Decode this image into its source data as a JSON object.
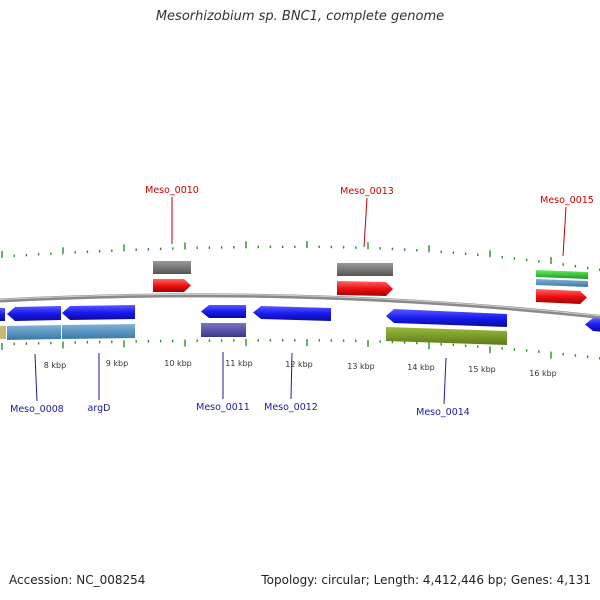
{
  "title": "Mesorhizobium sp. BNC1, complete genome",
  "footer": {
    "accession": "Accession: NC_008254",
    "summary": "Topology: circular; Length: 4,412,446 bp; Genes: 4,131"
  },
  "colors": {
    "backbone": "#8a8a8a",
    "tick": "#2e8b2e",
    "forward_label": "#cc0000",
    "reverse_label": "#1a1aa8",
    "cds": "#1a1af0",
    "gene_forward": "#ee1111",
    "gene_reverse": "#5a55a5",
    "feature_grey": "#6e6e6e",
    "feature_lightblue": "#4f8fc0",
    "feature_olive": "#7a9a2a",
    "feature_green": "#33cc33"
  },
  "scale": {
    "labels": [
      "8 kbp",
      "9 kbp",
      "10 kbp",
      "11 kbp",
      "12 kbp",
      "13 kbp",
      "14 kbp",
      "15 kbp",
      "16 kbp"
    ]
  },
  "labels_top": [
    "Meso_0010",
    "Meso_0013",
    "Meso_0015"
  ],
  "labels_bottom": [
    "Meso_0008",
    "argD",
    "Meso_0011",
    "Meso_0012",
    "Meso_0014"
  ]
}
